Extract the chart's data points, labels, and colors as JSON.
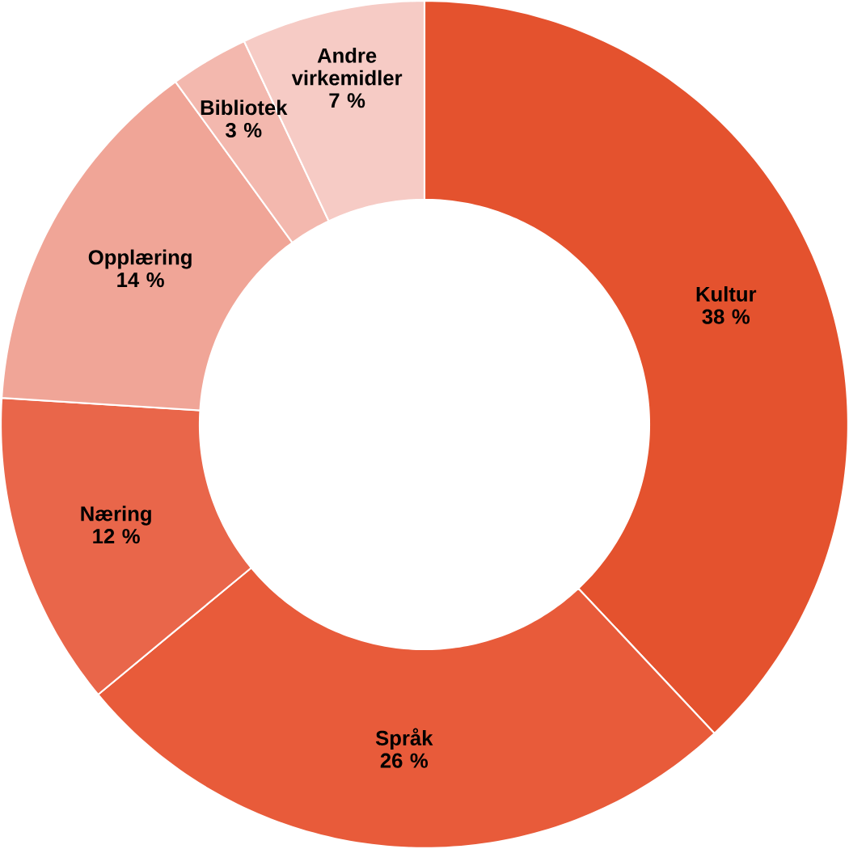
{
  "chart_data": {
    "type": "donut",
    "categories": [
      "Kultur",
      "Språk",
      "Næring",
      "Opplæring",
      "Bibliotek",
      "Andre virkemidler"
    ],
    "values": [
      38,
      26,
      12,
      14,
      3,
      7
    ],
    "value_labels": [
      "38 %",
      "26 %",
      "12 %",
      "14 %",
      "3 %",
      "7 %"
    ],
    "colors": [
      "#e4522e",
      "#e85b3a",
      "#e9664a",
      "#f0a597",
      "#f3b8ae",
      "#f6cbc5"
    ]
  }
}
